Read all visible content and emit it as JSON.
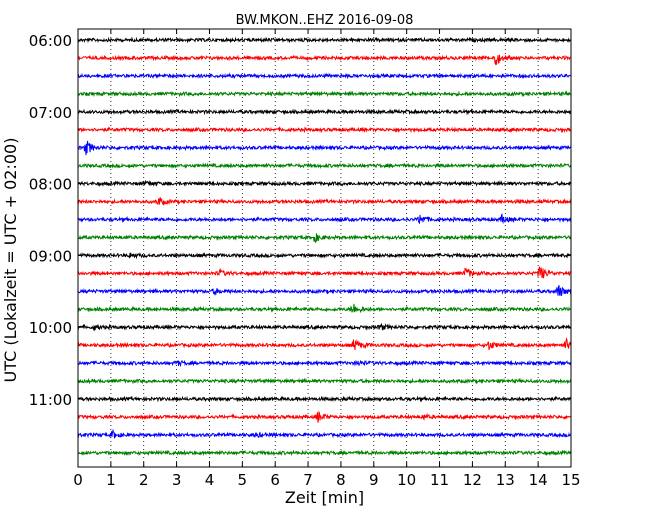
{
  "chart_data": {
    "type": "line",
    "title": "BW.MKON..EHZ 2016-09-08",
    "xlabel": "Zeit  [min]",
    "ylabel": "UTC (Lokalzeit = UTC + 02:00)",
    "xlim": [
      0,
      15
    ],
    "x_ticks": [
      0,
      1,
      2,
      3,
      4,
      5,
      6,
      7,
      8,
      9,
      10,
      11,
      12,
      13,
      14,
      15
    ],
    "x_tick_labels": [
      "0",
      "1",
      "2",
      "3",
      "4",
      "5",
      "6",
      "7",
      "8",
      "9",
      "10",
      "11",
      "12",
      "13",
      "14",
      "15"
    ],
    "y_tick_labels": [
      "06:00",
      "07:00",
      "08:00",
      "09:00",
      "10:00",
      "11:00"
    ],
    "grid": true,
    "trace_interval_min": 15,
    "series_colors": [
      "#000000",
      "#ff0000",
      "#0000ff",
      "#008000"
    ],
    "traces": [
      {
        "start": "06:00",
        "color": "#000000",
        "events": []
      },
      {
        "start": "06:15",
        "color": "#ff0000",
        "events": [
          {
            "t": 12.7,
            "amp": 1.0
          }
        ]
      },
      {
        "start": "06:30",
        "color": "#0000ff",
        "events": []
      },
      {
        "start": "06:45",
        "color": "#008000",
        "events": []
      },
      {
        "start": "07:00",
        "color": "#000000",
        "events": []
      },
      {
        "start": "07:15",
        "color": "#ff0000",
        "events": []
      },
      {
        "start": "07:30",
        "color": "#0000ff",
        "events": [
          {
            "t": 0.25,
            "amp": 1.0
          }
        ]
      },
      {
        "start": "07:45",
        "color": "#008000",
        "events": []
      },
      {
        "start": "08:00",
        "color": "#000000",
        "events": [
          {
            "t": 2.1,
            "amp": 0.3
          }
        ]
      },
      {
        "start": "08:15",
        "color": "#ff0000",
        "events": [
          {
            "t": 2.45,
            "amp": 0.5
          }
        ]
      },
      {
        "start": "08:30",
        "color": "#0000ff",
        "events": [
          {
            "t": 10.4,
            "amp": 0.7
          },
          {
            "t": 12.9,
            "amp": 0.5
          }
        ]
      },
      {
        "start": "08:45",
        "color": "#008000",
        "events": [
          {
            "t": 7.2,
            "amp": 0.6
          }
        ]
      },
      {
        "start": "09:00",
        "color": "#000000",
        "events": [
          {
            "t": 1.6,
            "amp": 0.3
          }
        ]
      },
      {
        "start": "09:15",
        "color": "#ff0000",
        "events": [
          {
            "t": 4.3,
            "amp": 0.4
          },
          {
            "t": 11.8,
            "amp": 0.7
          },
          {
            "t": 14.05,
            "amp": 1.1
          }
        ]
      },
      {
        "start": "09:30",
        "color": "#0000ff",
        "events": [
          {
            "t": 4.15,
            "amp": 0.4
          },
          {
            "t": 14.6,
            "amp": 1.0
          }
        ]
      },
      {
        "start": "09:45",
        "color": "#008000",
        "events": [
          {
            "t": 8.35,
            "amp": 0.9
          }
        ]
      },
      {
        "start": "10:00",
        "color": "#000000",
        "events": [
          {
            "t": 0.5,
            "amp": 0.3
          },
          {
            "t": 9.2,
            "amp": 0.4
          }
        ]
      },
      {
        "start": "10:15",
        "color": "#ff0000",
        "events": [
          {
            "t": 8.4,
            "amp": 0.8
          },
          {
            "t": 12.5,
            "amp": 0.6
          },
          {
            "t": 14.85,
            "amp": 0.8
          }
        ]
      },
      {
        "start": "10:30",
        "color": "#0000ff",
        "events": [
          {
            "t": 3.0,
            "amp": 0.3
          },
          {
            "t": 8.5,
            "amp": 0.3
          }
        ]
      },
      {
        "start": "10:45",
        "color": "#008000",
        "events": []
      },
      {
        "start": "11:00",
        "color": "#000000",
        "events": []
      },
      {
        "start": "11:15",
        "color": "#ff0000",
        "events": [
          {
            "t": 7.3,
            "amp": 0.7
          },
          {
            "t": 10.5,
            "amp": 0.3
          }
        ]
      },
      {
        "start": "11:30",
        "color": "#0000ff",
        "events": [
          {
            "t": 1.05,
            "amp": 0.5
          },
          {
            "t": 5.4,
            "amp": 0.3
          }
        ]
      },
      {
        "start": "11:45",
        "color": "#008000",
        "events": []
      }
    ]
  }
}
